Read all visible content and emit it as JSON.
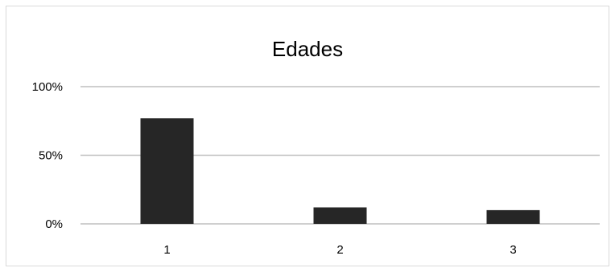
{
  "chart_data": {
    "type": "bar",
    "title": "Edades",
    "categories": [
      "1",
      "2",
      "3"
    ],
    "values": [
      77,
      12,
      10
    ],
    "value_unit": "%",
    "ylim": [
      0,
      100
    ],
    "yticks": [
      0,
      50,
      100
    ],
    "ytick_labels": [
      "0%",
      "50%",
      "100%"
    ],
    "grid": true,
    "legend": "none",
    "bar_color": "#262626",
    "grid_color": "#bfbfbf",
    "frame_color": "#d9d9d9"
  }
}
